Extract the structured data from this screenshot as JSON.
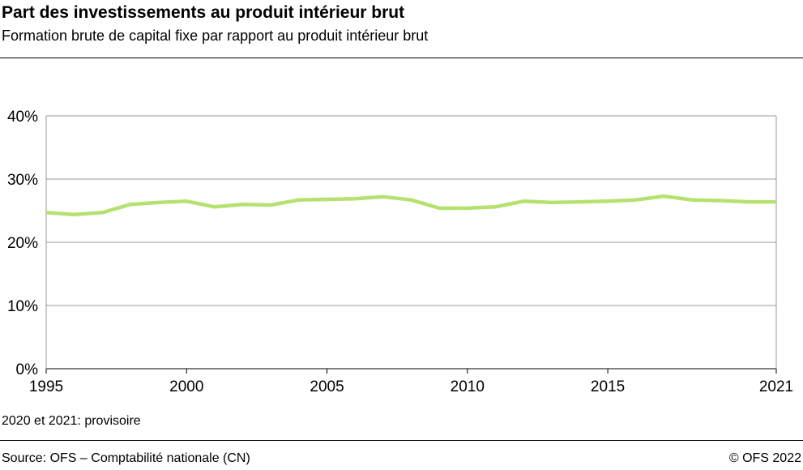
{
  "title": "Part des investissements au produit intérieur brut",
  "subtitle": "Formation brute de capital fixe par rapport au produit intérieur brut",
  "note": "2020 et 2021: provisoire",
  "source": "Source: OFS – Comptabilité nationale (CN)",
  "copyright": "© OFS 2022",
  "chart_data": {
    "type": "line",
    "title": "Part des investissements au produit intérieur brut",
    "xlabel": "",
    "ylabel": "",
    "xlim": [
      1995,
      2021
    ],
    "ylim": [
      0,
      40
    ],
    "x_ticks": [
      "1995",
      "2000",
      "2005",
      "2010",
      "2015",
      "2021"
    ],
    "y_ticks": [
      "0%",
      "10%",
      "20%",
      "30%",
      "40%"
    ],
    "grid": true,
    "line_color": "#b5e26f",
    "x": [
      1995,
      1996,
      1997,
      1998,
      1999,
      2000,
      2001,
      2002,
      2003,
      2004,
      2005,
      2006,
      2007,
      2008,
      2009,
      2010,
      2011,
      2012,
      2013,
      2014,
      2015,
      2016,
      2017,
      2018,
      2019,
      2020,
      2021
    ],
    "values": [
      24.7,
      24.4,
      24.7,
      26.0,
      26.3,
      26.5,
      25.6,
      26.0,
      25.9,
      26.7,
      26.8,
      26.9,
      27.2,
      26.7,
      25.4,
      25.4,
      25.6,
      26.5,
      26.3,
      26.4,
      26.5,
      26.7,
      27.3,
      26.7,
      26.6,
      26.4,
      26.4
    ]
  }
}
